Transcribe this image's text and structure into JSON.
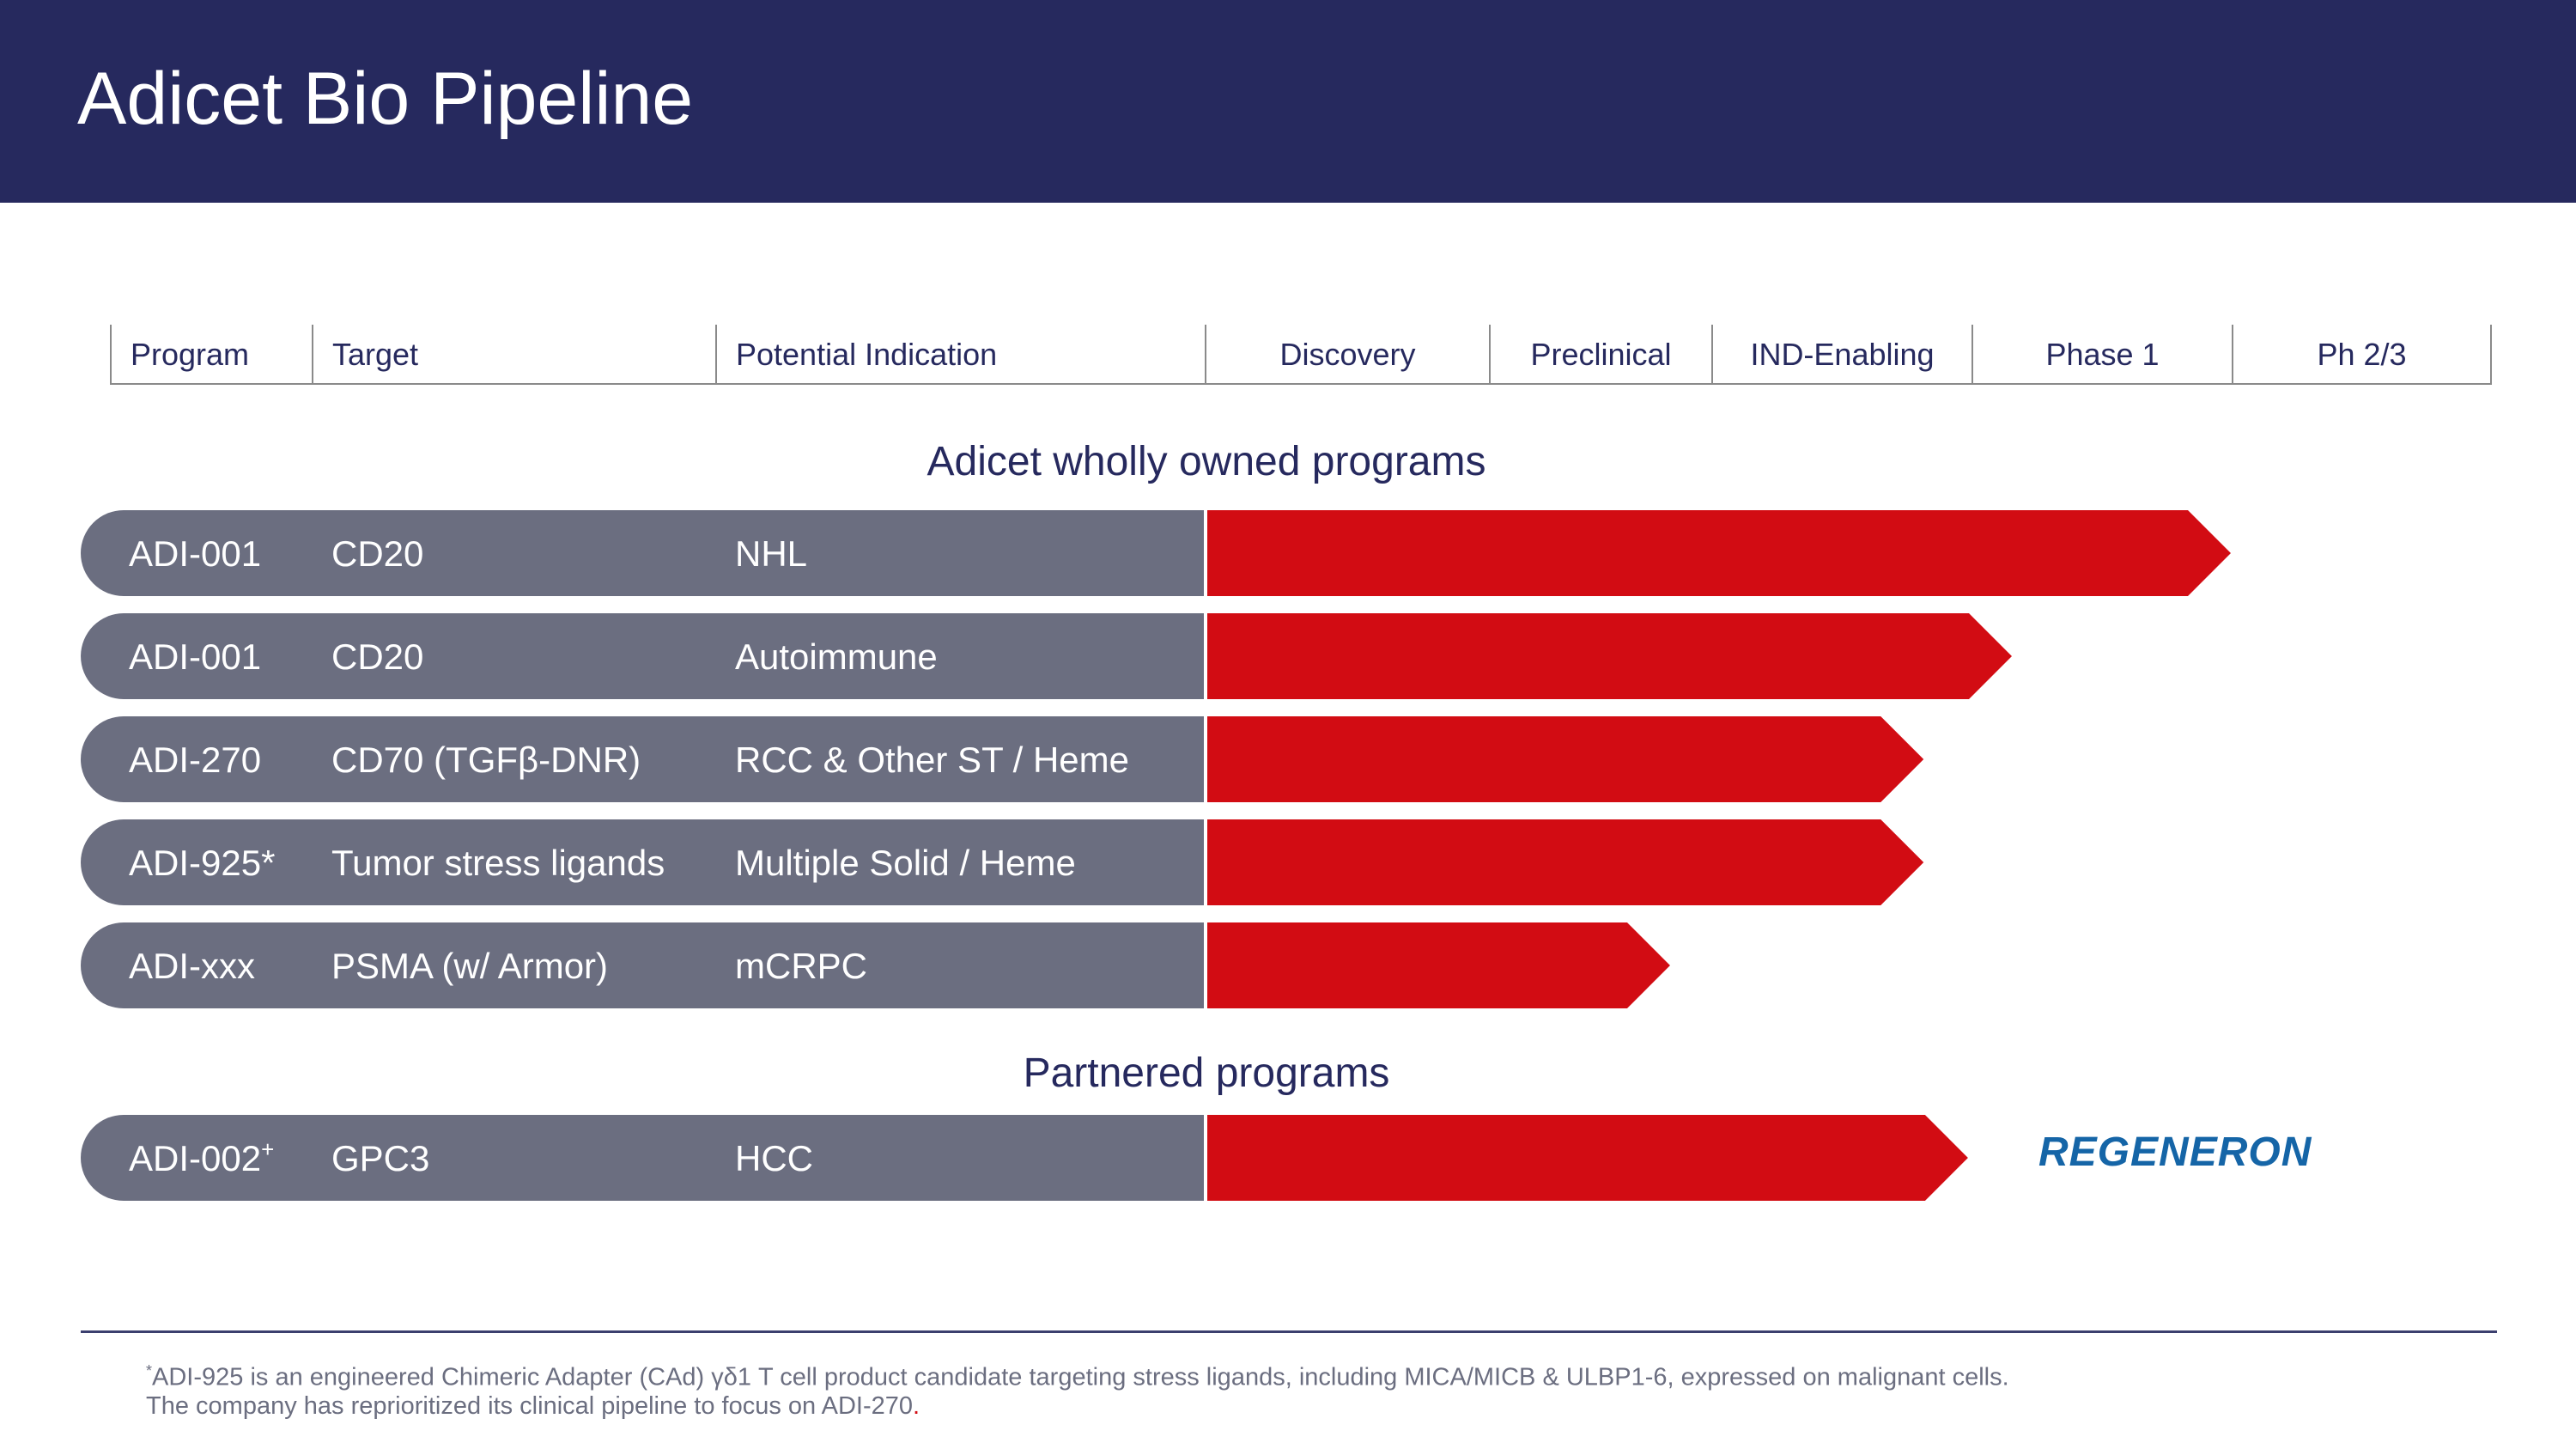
{
  "page": {
    "title": "Adicet Bio Pipeline"
  },
  "columns": [
    {
      "label": "Program"
    },
    {
      "label": "Target"
    },
    {
      "label": "Potential Indication"
    },
    {
      "label": "Discovery"
    },
    {
      "label": "Preclinical"
    },
    {
      "label": "IND-Enabling"
    },
    {
      "label": "Phase 1"
    },
    {
      "label": "Ph 2/3"
    }
  ],
  "sections": {
    "owned": "Adicet wholly owned programs",
    "partnered": "Partnered programs"
  },
  "partner": {
    "name": "REGENERON"
  },
  "footnote": {
    "marker": "*",
    "text": "ADI-925 is an engineered Chimeric Adapter (CAd) γδ1 T cell product candidate targeting stress ligands, including MICA/MICB & ULBP1-6, expressed on malignant cells. The company has reprioritized its clinical pipeline to focus on ADI-270",
    "end": "."
  },
  "colors": {
    "header": "#26295e",
    "row_fill": "#6b6e80",
    "progress_bar": "#d20c13",
    "text_dark": "#26295e",
    "partner_logo": "#1565a7"
  },
  "chart_data": {
    "type": "table",
    "title": "Adicet Bio Pipeline",
    "stages": [
      "Discovery",
      "Preclinical",
      "IND-Enabling",
      "Phase 1",
      "Ph 2/3"
    ],
    "progress_units": "stage index (0 = start of Discovery, 5 = end of Ph 2/3)",
    "programs": [
      {
        "section": "owned",
        "program": "ADI-001",
        "program_sup": "",
        "target": "CD20",
        "indication": "NHL",
        "progress": 4.0
      },
      {
        "section": "owned",
        "program": "ADI-001",
        "program_sup": "",
        "target": "CD20",
        "indication": "Autoimmune",
        "progress": 3.15
      },
      {
        "section": "owned",
        "program": "ADI-270",
        "program_sup": "",
        "target": "CD70 (TGFβ-DNR)",
        "indication": "RCC & Other ST / Heme",
        "progress": 2.81
      },
      {
        "section": "owned",
        "program": "ADI-925*",
        "program_sup": "",
        "target": "Tumor stress ligands",
        "indication": "Multiple Solid / Heme",
        "progress": 2.81
      },
      {
        "section": "owned",
        "program": "ADI-xxx",
        "program_sup": "",
        "target": "PSMA (w/ Armor)",
        "indication": "mCRPC",
        "progress": 1.81
      },
      {
        "section": "partnered",
        "program": "ADI-002",
        "program_sup": "+",
        "target": "GPC3",
        "indication": "HCC",
        "progress": 2.98,
        "partner": "REGENERON"
      }
    ]
  }
}
